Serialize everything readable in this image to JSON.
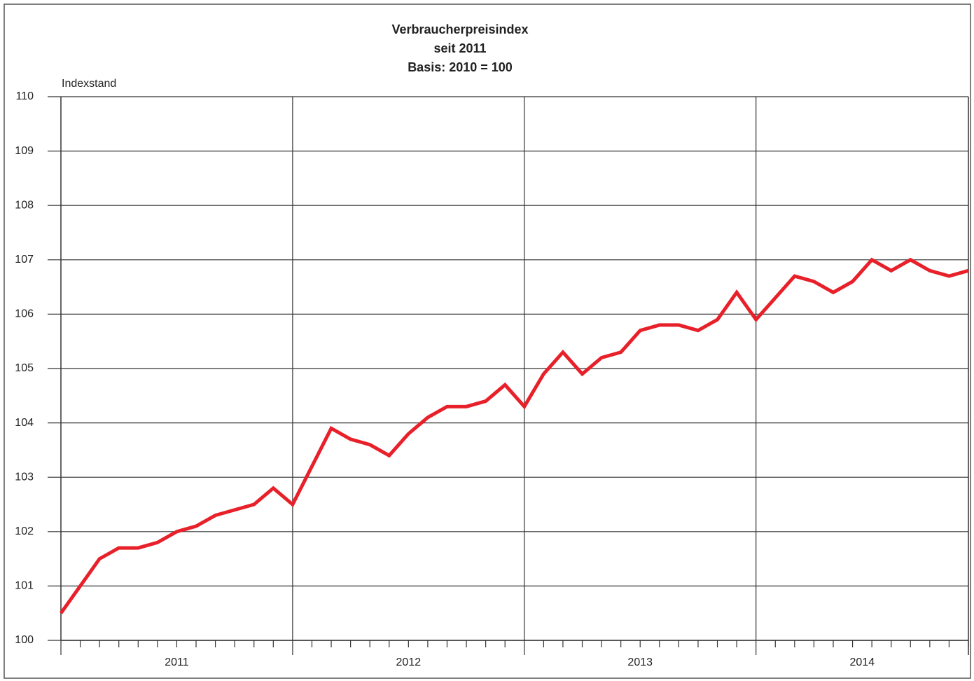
{
  "chart_data": {
    "type": "line",
    "title": "Verbraucherpreisindex",
    "subtitle": "seit 2011",
    "note": "Basis: 2010 = 100",
    "y_label": "Indexstand",
    "years": [
      "2011",
      "2012",
      "2013",
      "2014"
    ],
    "series": [
      {
        "name": "Verbraucherpreisindex",
        "color": "#e8202a",
        "values": [
          100.5,
          101.0,
          101.5,
          101.7,
          101.7,
          101.8,
          102.0,
          102.1,
          102.3,
          102.4,
          102.5,
          102.8,
          102.5,
          103.2,
          103.9,
          103.7,
          103.6,
          103.4,
          103.8,
          104.1,
          104.3,
          104.3,
          104.4,
          104.7,
          104.3,
          104.9,
          105.3,
          104.9,
          105.2,
          105.3,
          105.7,
          105.8,
          105.8,
          105.7,
          105.9,
          106.4,
          105.9,
          106.3,
          106.7,
          106.6,
          106.4,
          106.6,
          107.0,
          106.8,
          107.0,
          106.8,
          106.7,
          106.8
        ]
      }
    ],
    "ylim": [
      100,
      110
    ],
    "yticks": [
      100,
      101,
      102,
      103,
      104,
      105,
      106,
      107,
      108,
      109,
      110
    ],
    "grid": true
  }
}
